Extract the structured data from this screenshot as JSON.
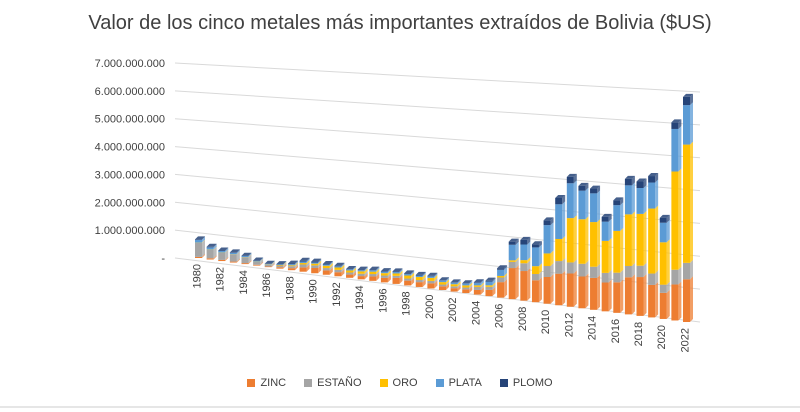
{
  "chart_data": {
    "type": "bar",
    "stacked": true,
    "style": "3d-perspective",
    "title": "Valor de los cinco metales más importantes extraídos de Bolivia ($US)",
    "ylim": [
      0,
      7000000000
    ],
    "y_ticks": [
      "-",
      "1.000.000.000",
      "2.000.000.000",
      "3.000.000.000",
      "4.000.000.000",
      "5.000.000.000",
      "6.000.000.000",
      "7.000.000.000"
    ],
    "y_tick_values": [
      0,
      1000000000,
      2000000000,
      3000000000,
      4000000000,
      5000000000,
      6000000000,
      7000000000
    ],
    "categories": [
      "1980",
      "1981",
      "1982",
      "1983",
      "1984",
      "1985",
      "1986",
      "1987",
      "1988",
      "1989",
      "1990",
      "1991",
      "1992",
      "1993",
      "1994",
      "1995",
      "1996",
      "1997",
      "1998",
      "1999",
      "2000",
      "2001",
      "2002",
      "2003",
      "2004",
      "2005",
      "2006",
      "2007",
      "2008",
      "2009",
      "2010",
      "2011",
      "2012",
      "2013",
      "2014",
      "2015",
      "2016",
      "2017",
      "2018",
      "2019",
      "2020",
      "2021",
      "2022"
    ],
    "x_tick_labels": [
      "1980",
      "1982",
      "1984",
      "1986",
      "1988",
      "1990",
      "1992",
      "1994",
      "1996",
      "1998",
      "2000",
      "2002",
      "2004",
      "2006",
      "2008",
      "2010",
      "2012",
      "2014",
      "2016",
      "2018",
      "2020",
      "2022"
    ],
    "grid": true,
    "legend_position": "bottom",
    "series": [
      {
        "name": "ZINC",
        "color": "#ED7D31",
        "values": [
          40000000,
          45000000,
          40000000,
          35000000,
          35000000,
          30000000,
          25000000,
          50000000,
          70000000,
          150000000,
          180000000,
          150000000,
          140000000,
          110000000,
          110000000,
          150000000,
          150000000,
          200000000,
          160000000,
          160000000,
          170000000,
          120000000,
          110000000,
          120000000,
          150000000,
          200000000,
          500000000,
          1000000000,
          950000000,
          700000000,
          850000000,
          1000000000,
          1050000000,
          1000000000,
          1000000000,
          900000000,
          950000000,
          1150000000,
          1200000000,
          1000000000,
          800000000,
          1100000000,
          1300000000
        ]
      },
      {
        "name": "ESTAÑO",
        "color": "#A5A5A5",
        "values": [
          500000000,
          300000000,
          250000000,
          250000000,
          200000000,
          100000000,
          60000000,
          60000000,
          70000000,
          100000000,
          90000000,
          80000000,
          80000000,
          70000000,
          80000000,
          80000000,
          80000000,
          70000000,
          70000000,
          70000000,
          80000000,
          60000000,
          60000000,
          60000000,
          100000000,
          100000000,
          150000000,
          200000000,
          250000000,
          200000000,
          350000000,
          400000000,
          350000000,
          400000000,
          350000000,
          300000000,
          300000000,
          350000000,
          350000000,
          350000000,
          250000000,
          450000000,
          500000000
        ]
      },
      {
        "name": "ORO",
        "color": "#FFC000",
        "values": [
          10000000,
          10000000,
          10000000,
          10000000,
          10000000,
          10000000,
          10000000,
          20000000,
          30000000,
          50000000,
          60000000,
          80000000,
          80000000,
          70000000,
          80000000,
          80000000,
          80000000,
          80000000,
          100000000,
          100000000,
          100000000,
          80000000,
          70000000,
          70000000,
          50000000,
          50000000,
          50000000,
          50000000,
          100000000,
          250000000,
          400000000,
          700000000,
          1400000000,
          1400000000,
          1400000000,
          1000000000,
          1300000000,
          1600000000,
          1600000000,
          2000000000,
          1300000000,
          3000000000,
          3600000000
        ]
      },
      {
        "name": "PLATA",
        "color": "#5B9BD5",
        "values": [
          100000000,
          80000000,
          60000000,
          50000000,
          40000000,
          30000000,
          20000000,
          20000000,
          40000000,
          50000000,
          40000000,
          40000000,
          40000000,
          40000000,
          40000000,
          50000000,
          50000000,
          50000000,
          50000000,
          50000000,
          50000000,
          50000000,
          50000000,
          60000000,
          80000000,
          120000000,
          200000000,
          500000000,
          500000000,
          600000000,
          900000000,
          1100000000,
          1100000000,
          900000000,
          900000000,
          600000000,
          800000000,
          900000000,
          800000000,
          800000000,
          600000000,
          1300000000,
          1200000000
        ]
      },
      {
        "name": "PLOMO",
        "color": "#264478",
        "values": [
          20000000,
          20000000,
          15000000,
          15000000,
          10000000,
          10000000,
          5000000,
          10000000,
          20000000,
          30000000,
          30000000,
          20000000,
          20000000,
          10000000,
          20000000,
          20000000,
          20000000,
          20000000,
          20000000,
          20000000,
          20000000,
          10000000,
          10000000,
          10000000,
          20000000,
          30000000,
          50000000,
          100000000,
          150000000,
          100000000,
          150000000,
          200000000,
          200000000,
          150000000,
          150000000,
          150000000,
          150000000,
          200000000,
          200000000,
          200000000,
          150000000,
          200000000,
          250000000
        ]
      }
    ]
  }
}
